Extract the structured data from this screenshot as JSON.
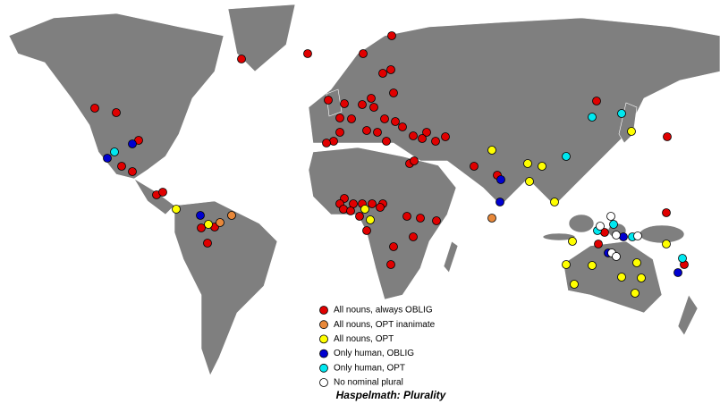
{
  "legend": {
    "items": [
      {
        "label": "All nouns, always OBLIG",
        "color": "#e00000"
      },
      {
        "label": "All nouns, OPT inanimate",
        "color": "#e8883a"
      },
      {
        "label": "All nouns, OPT",
        "color": "#ffff00"
      },
      {
        "label": "Only human, OBLIG",
        "color": "#0000d0"
      },
      {
        "label": "Only human, OPT",
        "color": "#00e8f0"
      },
      {
        "label": "No nominal plural",
        "color": "#ffffff"
      }
    ]
  },
  "caption": "Haspelmath: Plurality"
}
